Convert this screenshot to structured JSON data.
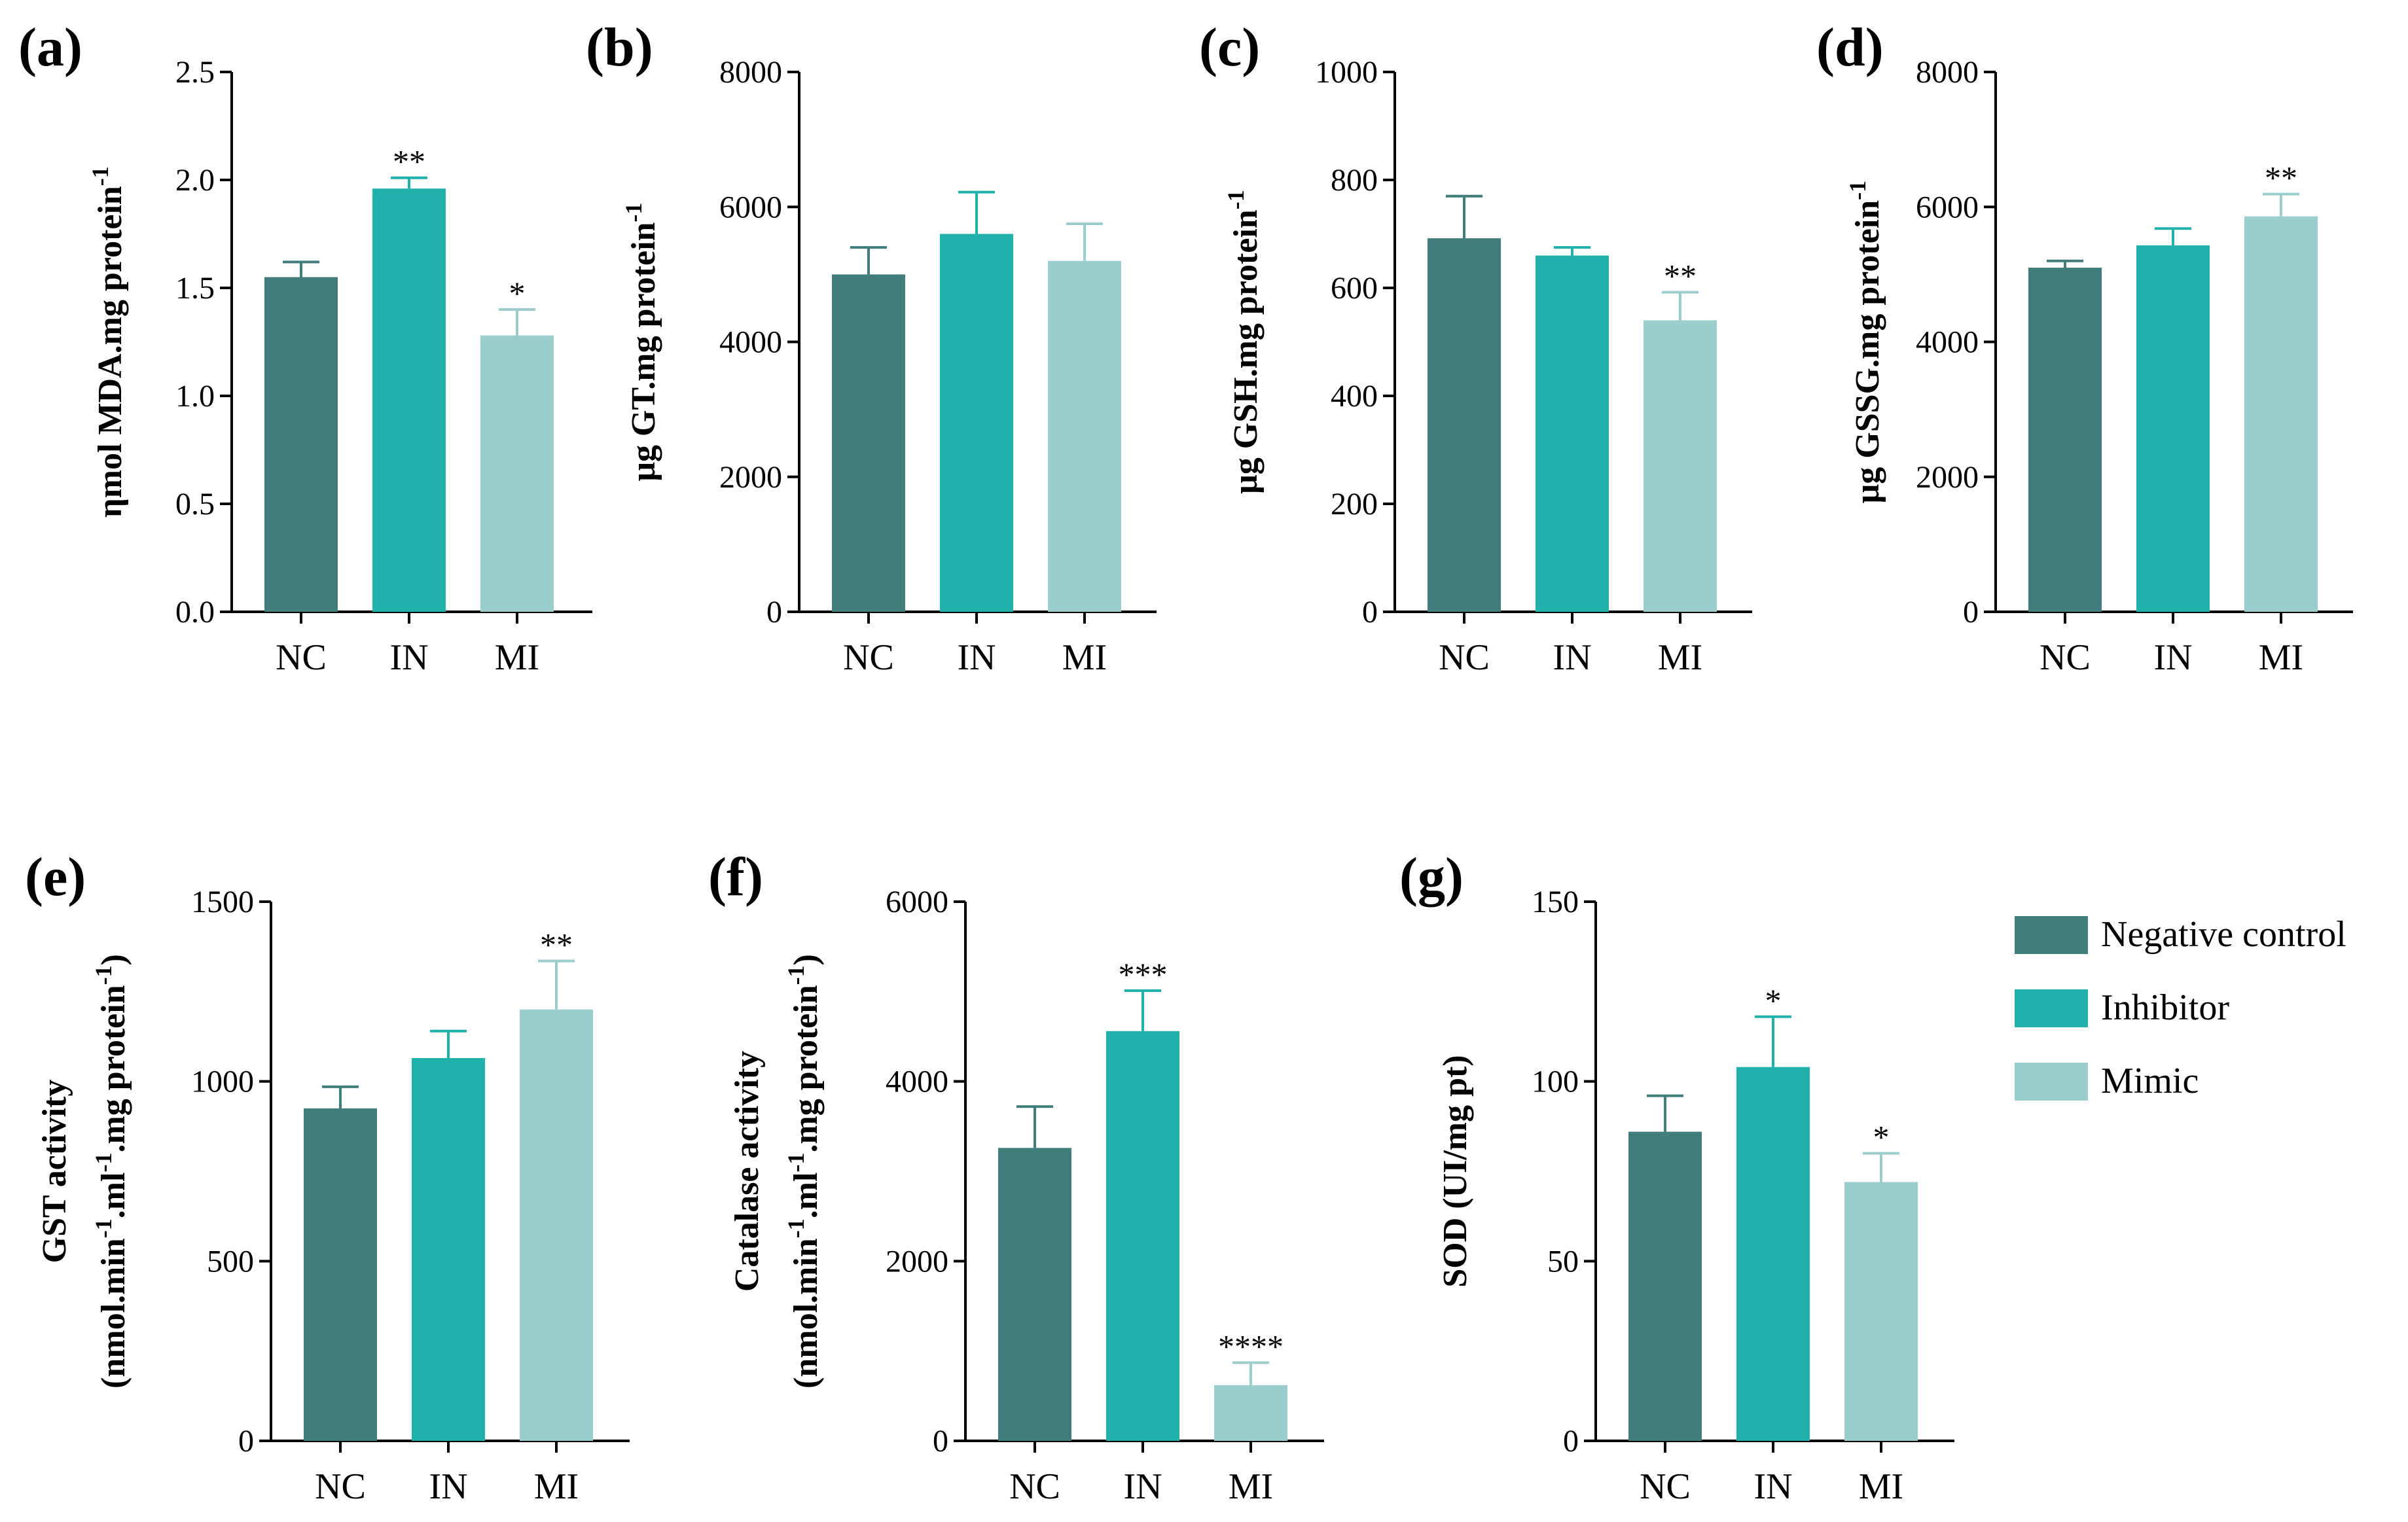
{
  "legend": [
    {
      "name": "Negative control",
      "color": "#417e7b"
    },
    {
      "name": "Inhibitor",
      "color": "#20b2aa"
    },
    {
      "name": "Mimic",
      "color": "#9ccdcd"
    }
  ],
  "chart_data": [
    {
      "panel": "(a)",
      "type": "bar",
      "categories": [
        "NC",
        "IN",
        "MI"
      ],
      "values": [
        1.55,
        1.96,
        1.28
      ],
      "errors": [
        0.07,
        0.05,
        0.12
      ],
      "significance": [
        "",
        "**",
        "*"
      ],
      "ylabel": "ηmol MDA.mg protein",
      "ylabel_sup": "-1",
      "ylim": [
        0,
        2.5
      ],
      "yticks": [
        "0.0",
        "0.5",
        "1.0",
        "1.5",
        "2.0",
        "2.5"
      ]
    },
    {
      "panel": "(b)",
      "type": "bar",
      "categories": [
        "NC",
        "IN",
        "MI"
      ],
      "values": [
        5000,
        5600,
        5200
      ],
      "errors": [
        400,
        620,
        550
      ],
      "significance": [
        "",
        "",
        ""
      ],
      "ylabel": "μg GT.mg protein",
      "ylabel_sup": "-1",
      "ylim": [
        0,
        8000
      ],
      "yticks": [
        "0",
        "2000",
        "4000",
        "6000",
        "8000"
      ]
    },
    {
      "panel": "(c)",
      "type": "bar",
      "categories": [
        "NC",
        "IN",
        "MI"
      ],
      "values": [
        692,
        660,
        540
      ],
      "errors": [
        78,
        15,
        52
      ],
      "significance": [
        "",
        "",
        "**"
      ],
      "ylabel": "μg GSH.mg protein",
      "ylabel_sup": "-1",
      "ylim": [
        0,
        1000
      ],
      "yticks": [
        "0",
        "200",
        "400",
        "600",
        "800",
        "1000"
      ]
    },
    {
      "panel": "(d)",
      "type": "bar",
      "categories": [
        "NC",
        "IN",
        "MI"
      ],
      "values": [
        5100,
        5430,
        5860
      ],
      "errors": [
        100,
        250,
        330
      ],
      "significance": [
        "",
        "",
        "**"
      ],
      "ylabel": "μg GSSG.mg protein",
      "ylabel_sup": "-1",
      "ylim": [
        0,
        8000
      ],
      "yticks": [
        "0",
        "2000",
        "4000",
        "6000",
        "8000"
      ]
    },
    {
      "panel": "(e)",
      "type": "bar",
      "categories": [
        "NC",
        "IN",
        "MI"
      ],
      "values": [
        925,
        1065,
        1200
      ],
      "errors": [
        60,
        75,
        135
      ],
      "significance": [
        "",
        "",
        "**"
      ],
      "ylabel": "GST activity",
      "ylabel2_parts": [
        "(nmol.min",
        "-1",
        ".ml",
        "-1",
        ".mg protein",
        "-1",
        ")"
      ],
      "ylim": [
        0,
        1500
      ],
      "yticks": [
        "0",
        "500",
        "1000",
        "1500"
      ]
    },
    {
      "panel": "(f)",
      "type": "bar",
      "categories": [
        "NC",
        "IN",
        "MI"
      ],
      "values": [
        3260,
        4560,
        620
      ],
      "errors": [
        460,
        450,
        250
      ],
      "significance": [
        "",
        "***",
        "****"
      ],
      "ylabel": "Catalase activity",
      "ylabel2_parts": [
        "(nmol.min",
        "-1",
        ".ml",
        "-1",
        ".mg protein",
        "-1",
        ")"
      ],
      "ylim": [
        0,
        6000
      ],
      "yticks": [
        "0",
        "2000",
        "4000",
        "6000"
      ]
    },
    {
      "panel": "(g)",
      "type": "bar",
      "categories": [
        "NC",
        "IN",
        "MI"
      ],
      "values": [
        86,
        104,
        72
      ],
      "errors": [
        10,
        14,
        8
      ],
      "significance": [
        "",
        "*",
        "*"
      ],
      "ylabel": "SOD (UI/mg pt)",
      "ylim": [
        0,
        150
      ],
      "yticks": [
        "0",
        "50",
        "100",
        "150"
      ]
    }
  ]
}
